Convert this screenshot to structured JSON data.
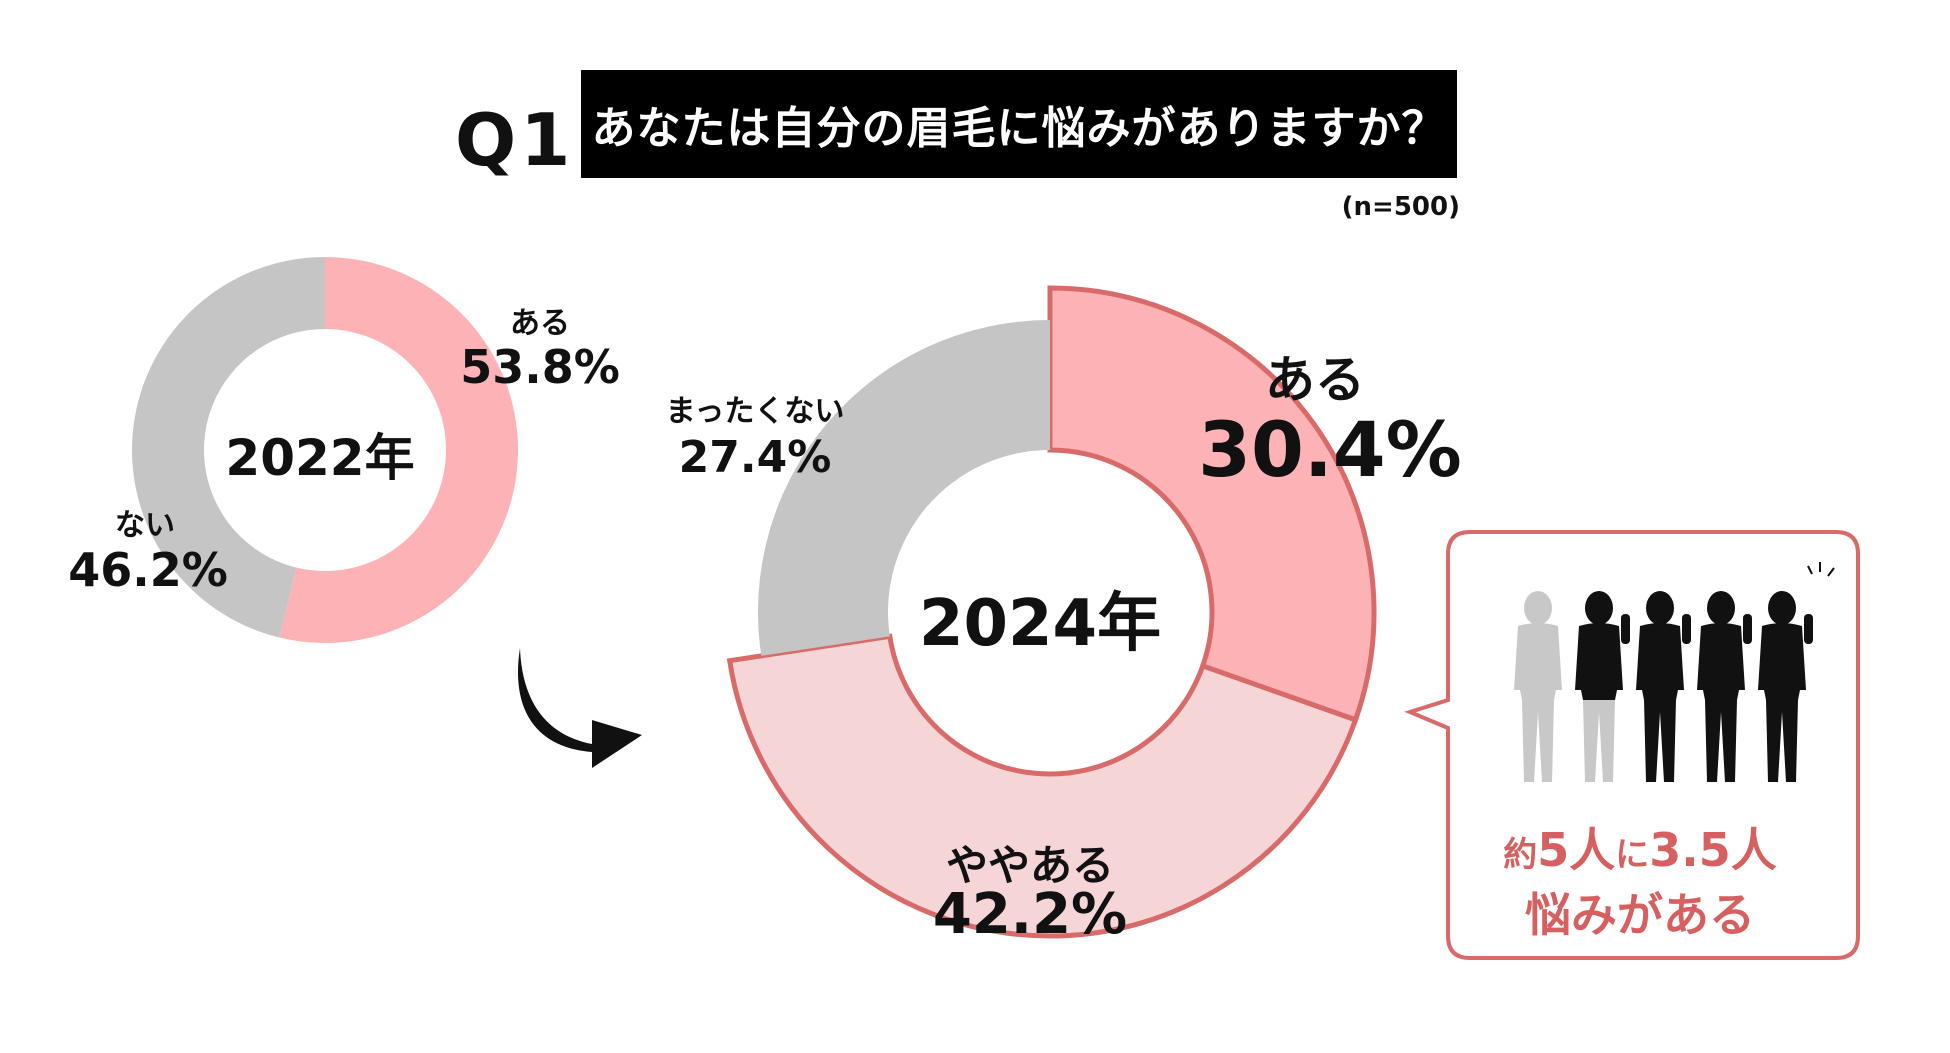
{
  "header": {
    "question_label": "Q1",
    "question_text": "あなたは自分の眉毛に悩みがありますか？",
    "sample_size": "(n=500)"
  },
  "colors": {
    "aru": "#fdb3b5",
    "yaya_aru": "#f5d5d5",
    "nai": "#c5c5c5",
    "outline": "#d96a6a",
    "callout_text": "#d66060"
  },
  "chart_data": [
    {
      "type": "pie",
      "title": "2022年",
      "categories": [
        "ある",
        "ない"
      ],
      "values": [
        53.8,
        46.2
      ],
      "value_labels": [
        "53.8%",
        "46.2%"
      ]
    },
    {
      "type": "pie",
      "title": "2024年",
      "categories": [
        "ある",
        "ややある",
        "まったくない"
      ],
      "values": [
        30.4,
        42.2,
        27.4
      ],
      "value_labels": [
        "30.4%",
        "42.2%",
        "27.4%"
      ]
    }
  ],
  "callout": {
    "prefix": "約",
    "number1": "5人",
    "mid": "に",
    "number2": "3.5人",
    "line2": "悩みがある",
    "people_total": 5,
    "people_highlighted": 3.5
  }
}
